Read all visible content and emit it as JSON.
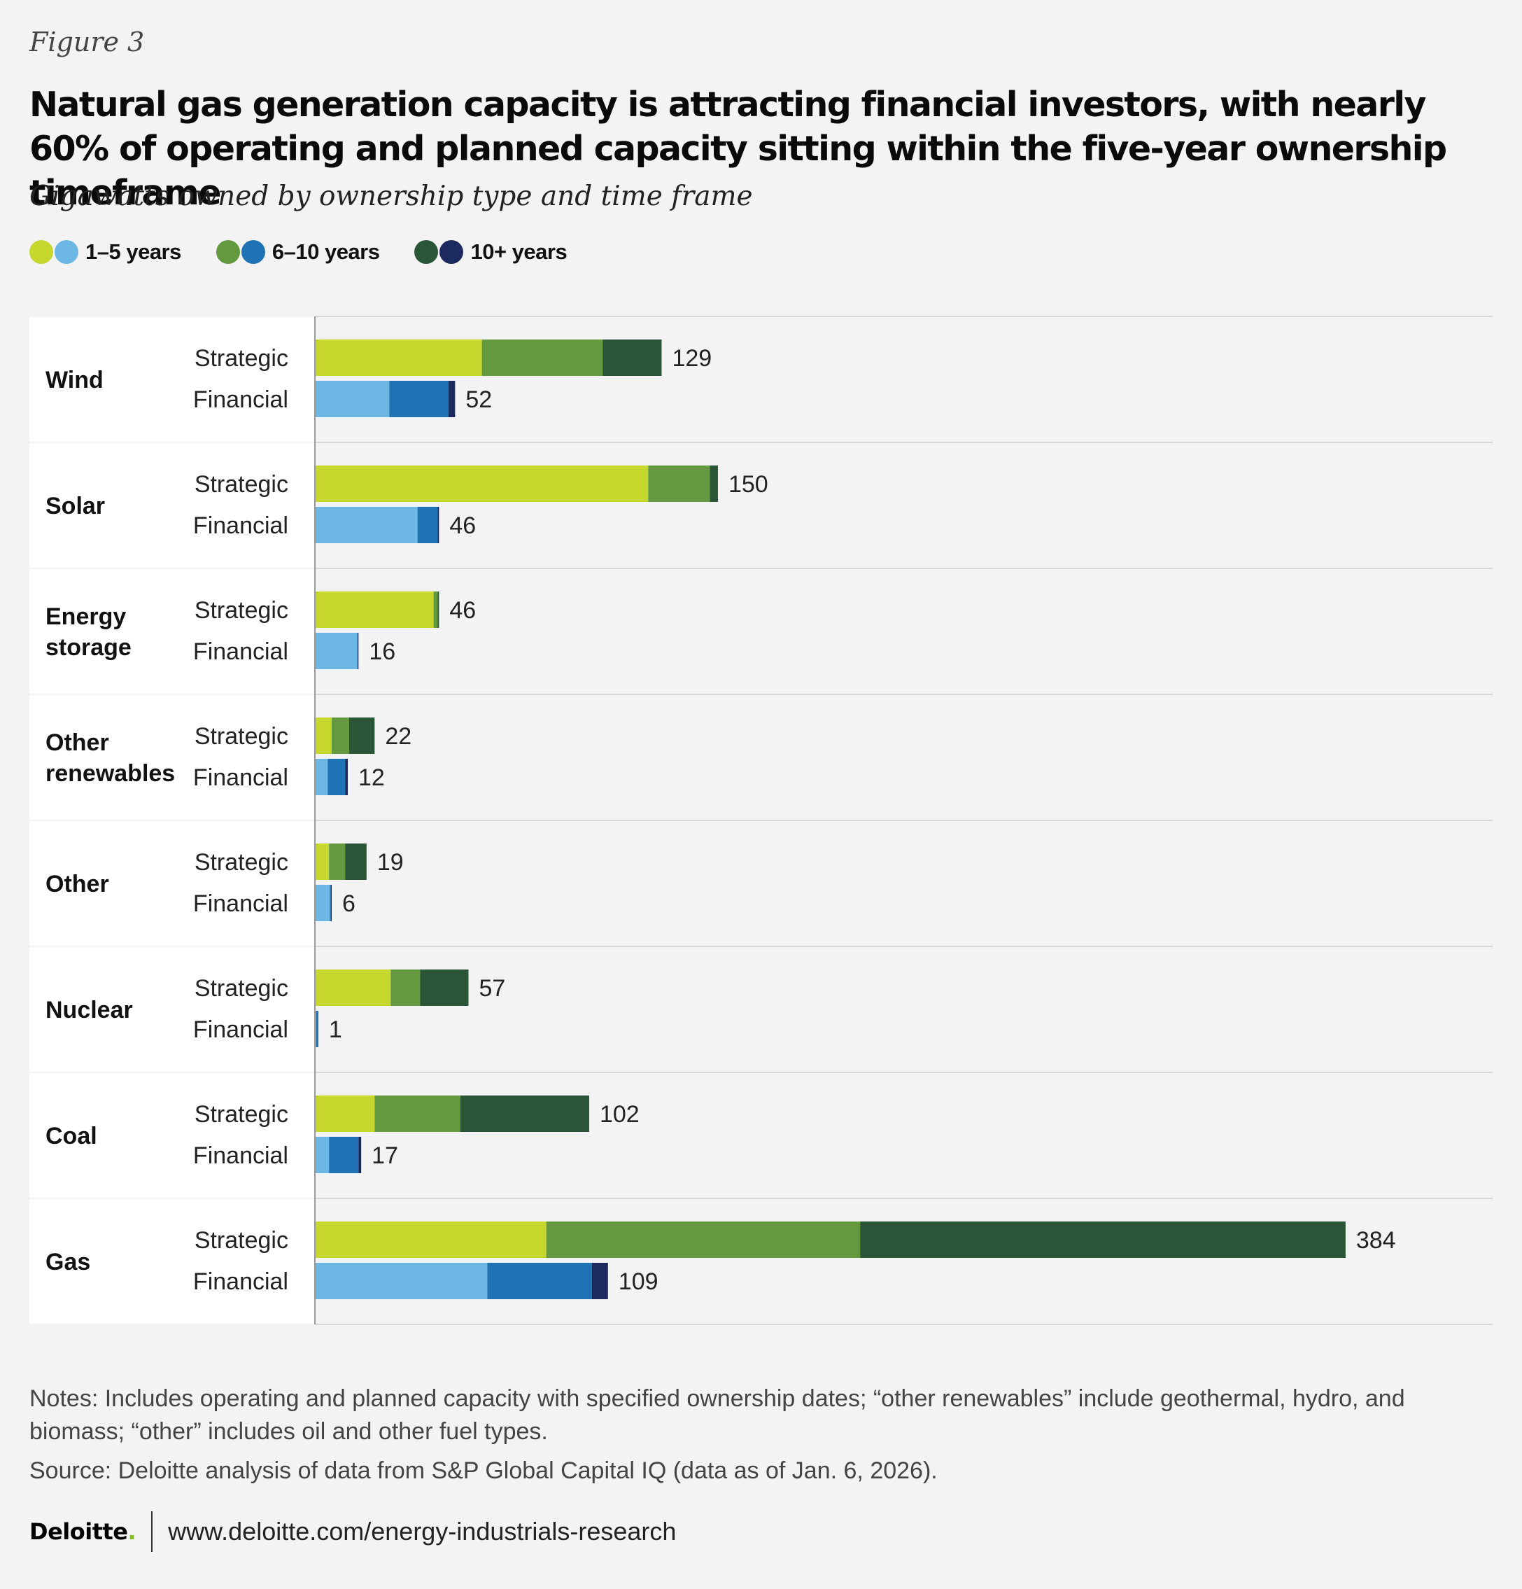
{
  "figure_label": "Figure 3",
  "title": "Natural gas generation capacity is attracting financial investors,  with nearly 60% of operating and planned capacity sitting within the five-year ownership timeframe",
  "subtitle": "Gigawatts owned by ownership type and time frame",
  "legend": [
    {
      "label": "1–5 years",
      "colors": [
        "#c5d62d",
        "#6cb7e3"
      ]
    },
    {
      "label": "6–10 years",
      "colors": [
        "#63993f",
        "#1f72b4"
      ]
    },
    {
      "label": "10+ years",
      "colors": [
        "#2a5536",
        "#1c2a5f"
      ]
    }
  ],
  "colors": {
    "Strategic": [
      "#c5d62d",
      "#63993f",
      "#2a5536"
    ],
    "Financial": [
      "#6cb7e3",
      "#1f72b4",
      "#1c2a5f"
    ],
    "row_band": "#ffffff",
    "gridline": "#d7d7d7",
    "axis": "#9a9a9a"
  },
  "chart_data": {
    "type": "bar",
    "orientation": "horizontal",
    "stacked": true,
    "categories": [
      "Wind",
      "Solar",
      "Energy storage",
      "Other renewables",
      "Other",
      "Nuclear",
      "Coal",
      "Gas"
    ],
    "category_lines": [
      [
        "Wind"
      ],
      [
        "Solar"
      ],
      [
        "Energy",
        "storage"
      ],
      [
        "Other",
        "renewables"
      ],
      [
        "Other"
      ],
      [
        "Nuclear"
      ],
      [
        "Coal"
      ],
      [
        "Gas"
      ]
    ],
    "ownership_types": [
      "Strategic",
      "Financial"
    ],
    "segments": [
      "1–5 years",
      "6–10 years",
      "10+ years"
    ],
    "xlim": [
      0,
      390
    ],
    "values": [
      {
        "category": "Wind",
        "Strategic": {
          "segments": [
            62,
            45,
            22
          ],
          "total": "129"
        },
        "Financial": {
          "segments": [
            27.5,
            22,
            2.5
          ],
          "total": "52"
        }
      },
      {
        "category": "Solar",
        "Strategic": {
          "segments": [
            124,
            23,
            3
          ],
          "total": "150"
        },
        "Financial": {
          "segments": [
            38,
            7.5,
            0.5
          ],
          "total": "46"
        }
      },
      {
        "category": "Energy storage",
        "Strategic": {
          "segments": [
            44,
            1.5,
            0.5
          ],
          "total": "46"
        },
        "Financial": {
          "segments": [
            15.5,
            0.3,
            0.2
          ],
          "total": "16"
        }
      },
      {
        "category": "Other renewables",
        "Strategic": {
          "segments": [
            6,
            6.5,
            9.5
          ],
          "total": "22"
        },
        "Financial": {
          "segments": [
            4.5,
            6.5,
            1
          ],
          "total": "12"
        }
      },
      {
        "category": "Other",
        "Strategic": {
          "segments": [
            5,
            6,
            8
          ],
          "total": "19"
        },
        "Financial": {
          "segments": [
            5.3,
            0.4,
            0.3
          ],
          "total": "6"
        }
      },
      {
        "category": "Nuclear",
        "Strategic": {
          "segments": [
            28,
            11,
            18
          ],
          "total": "57"
        },
        "Financial": {
          "segments": [
            0.2,
            0.7,
            0.1
          ],
          "total": "1"
        }
      },
      {
        "category": "Coal",
        "Strategic": {
          "segments": [
            22,
            32,
            48
          ],
          "total": "102"
        },
        "Financial": {
          "segments": [
            5,
            11,
            1
          ],
          "total": "17"
        }
      },
      {
        "category": "Gas",
        "Strategic": {
          "segments": [
            86,
            117,
            181
          ],
          "total": "384"
        },
        "Financial": {
          "segments": [
            64,
            39,
            6
          ],
          "total": "109"
        }
      }
    ]
  },
  "notes": "Notes: Includes operating and planned capacity with specified ownership dates; “other renewables” include geothermal, hydro, and biomass; “other” includes oil and other fuel types.",
  "source": "Source: Deloitte analysis of data from S&P Global Capital IQ (data as of Jan. 6, 2026).",
  "footer": {
    "brand": "Deloitte",
    "brand_dot": ".",
    "url": "www.deloitte.com/energy-industrials-research"
  }
}
